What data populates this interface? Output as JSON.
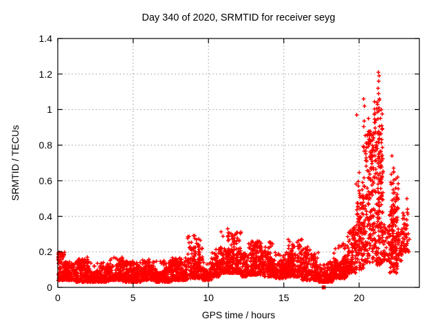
{
  "figure": {
    "background": "#ffffff"
  },
  "chart_data": {
    "type": "scatter",
    "title": "Day 340 of 2020, SRMTID for receiver seyg",
    "xlabel": "GPS time / hours",
    "ylabel": "SRMTID / TECUs",
    "xlim": [
      0,
      24
    ],
    "ylim": [
      0,
      1.4
    ],
    "xticks": [
      0,
      5,
      10,
      15,
      20
    ],
    "xtick_labels": [
      "0",
      "5",
      "10",
      "15",
      "20"
    ],
    "yticks": [
      0,
      0.2,
      0.4,
      0.6,
      0.8,
      1.0,
      1.2,
      1.4
    ],
    "ytick_labels": [
      "0",
      "0.2",
      "0.4",
      "0.6",
      "0.8",
      "1",
      "1.2",
      "1.4"
    ],
    "grid": true,
    "grid_color": "#b0b0b0",
    "axis_color": "#000000",
    "marker": "plus",
    "marker_color": "#ff0000",
    "seed": 1340,
    "point_cloud_segments": [
      [
        0.0,
        0.45,
        0.04,
        0.2,
        80
      ],
      [
        0.45,
        1.2,
        0.04,
        0.15,
        130
      ],
      [
        1.2,
        2.2,
        0.03,
        0.16,
        170
      ],
      [
        2.2,
        3.4,
        0.03,
        0.14,
        200
      ],
      [
        3.4,
        4.3,
        0.04,
        0.17,
        150
      ],
      [
        4.3,
        5.5,
        0.03,
        0.15,
        200
      ],
      [
        5.5,
        6.5,
        0.04,
        0.16,
        170
      ],
      [
        6.5,
        7.6,
        0.03,
        0.15,
        185
      ],
      [
        7.6,
        8.6,
        0.04,
        0.17,
        170
      ],
      [
        8.6,
        9.6,
        0.05,
        0.29,
        160
      ],
      [
        9.6,
        10.2,
        0.04,
        0.14,
        95
      ],
      [
        10.2,
        10.8,
        0.06,
        0.22,
        105
      ],
      [
        10.8,
        12.2,
        0.08,
        0.32,
        250
      ],
      [
        12.2,
        12.6,
        0.06,
        0.2,
        70
      ],
      [
        12.6,
        13.6,
        0.07,
        0.26,
        170
      ],
      [
        13.6,
        14.4,
        0.06,
        0.26,
        140
      ],
      [
        14.4,
        15.2,
        0.05,
        0.2,
        130
      ],
      [
        15.2,
        16.2,
        0.06,
        0.27,
        170
      ],
      [
        16.2,
        17.3,
        0.04,
        0.22,
        180
      ],
      [
        17.3,
        18.3,
        0.03,
        0.15,
        150
      ],
      [
        18.3,
        19.2,
        0.05,
        0.25,
        150
      ],
      [
        19.2,
        19.8,
        0.08,
        0.34,
        110
      ],
      [
        19.8,
        20.4,
        0.1,
        0.6,
        120
      ],
      [
        20.4,
        21.0,
        0.14,
        0.88,
        150
      ],
      [
        21.0,
        21.6,
        0.12,
        1.05,
        165
      ],
      [
        21.6,
        22.0,
        0.15,
        0.5,
        40
      ],
      [
        22.0,
        22.6,
        0.08,
        0.68,
        150
      ],
      [
        22.6,
        22.85,
        0.15,
        0.4,
        25
      ],
      [
        22.85,
        23.35,
        0.2,
        0.52,
        45
      ]
    ],
    "spike_columns": [
      [
        0.12,
        0.08,
        0.21,
        8
      ],
      [
        1.95,
        0.06,
        0.17,
        6
      ],
      [
        4.15,
        0.06,
        0.18,
        8
      ],
      [
        7.05,
        0.05,
        0.16,
        6
      ],
      [
        9.05,
        0.08,
        0.3,
        12
      ],
      [
        9.3,
        0.08,
        0.27,
        8
      ],
      [
        11.3,
        0.1,
        0.34,
        12
      ],
      [
        11.6,
        0.1,
        0.3,
        9
      ],
      [
        13.2,
        0.08,
        0.26,
        8
      ],
      [
        14.1,
        0.08,
        0.27,
        8
      ],
      [
        15.6,
        0.08,
        0.28,
        10
      ],
      [
        16.55,
        0.06,
        0.23,
        7
      ],
      [
        19.0,
        0.08,
        0.26,
        8
      ],
      [
        19.95,
        0.3,
        0.75,
        8
      ],
      [
        20.3,
        0.3,
        0.95,
        12
      ],
      [
        20.6,
        0.25,
        0.85,
        12
      ],
      [
        21.3,
        0.35,
        1.15,
        18
      ],
      [
        21.5,
        0.3,
        1.0,
        14
      ],
      [
        22.25,
        0.2,
        0.72,
        16
      ],
      [
        23.2,
        0.25,
        0.5,
        8
      ]
    ],
    "outlier_points": [
      [
        21.28,
        1.21
      ],
      [
        21.33,
        1.19
      ],
      [
        21.3,
        1.16
      ],
      [
        21.26,
        1.12
      ],
      [
        21.29,
        1.09
      ],
      [
        21.35,
        1.06
      ],
      [
        20.3,
        1.06
      ],
      [
        20.36,
        1.02
      ],
      [
        19.84,
        0.97
      ],
      [
        20.62,
        0.95
      ],
      [
        21.05,
        0.98
      ],
      [
        22.18,
        0.74
      ]
    ],
    "zero_square_point": [
      17.65,
      0.0
    ]
  }
}
